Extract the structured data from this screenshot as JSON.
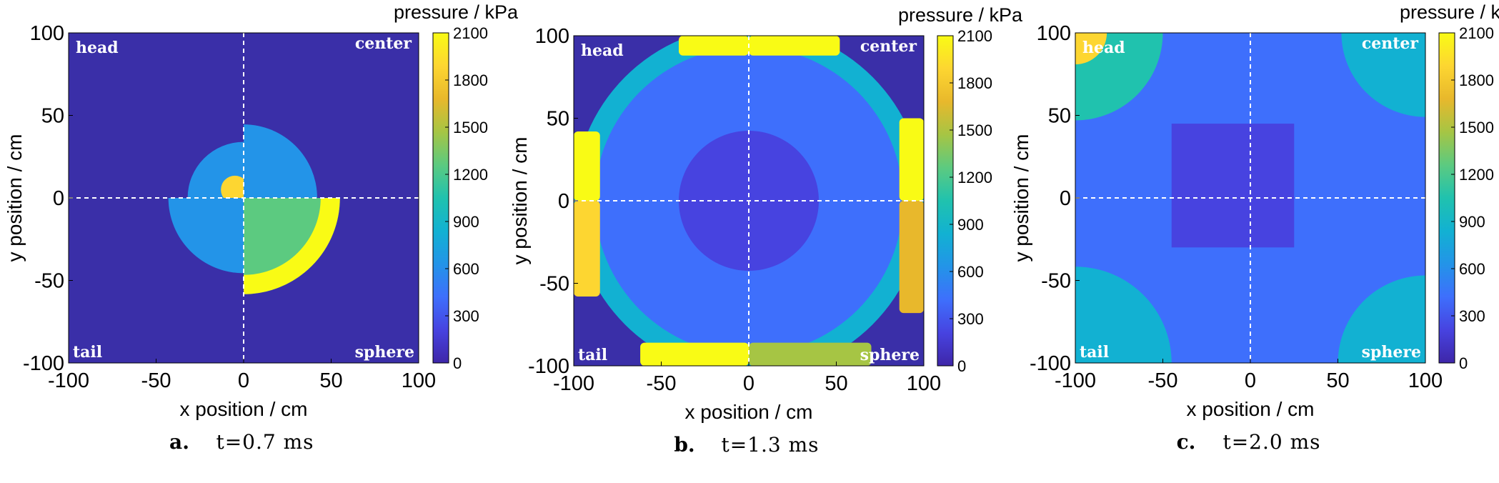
{
  "figure": {
    "colors": {
      "background": "#ffffff",
      "quiet": "#3a2fa8",
      "grid_line": "#ffffff"
    },
    "colormap": [
      "#3e26a8",
      "#4743e0",
      "#3e6ffc",
      "#2394e8",
      "#12b1d2",
      "#20c2ae",
      "#5cca80",
      "#a6c544",
      "#e8b82c",
      "#fdd631",
      "#f9fb15"
    ]
  },
  "chart_data": [
    {
      "type": "heatmap",
      "panel": "a",
      "caption_letter": "a.",
      "caption_time": "t=0.7 ms",
      "xlabel": "x position / cm",
      "ylabel": "y position / cm",
      "xlim": [
        -100,
        100
      ],
      "ylim": [
        -100,
        100
      ],
      "xticks": [
        "-100",
        "-50",
        "0",
        "50",
        "100"
      ],
      "yticks": [
        "100",
        "50",
        "0",
        "-50",
        "-100"
      ],
      "colorbar_title": "pressure / kPa",
      "colorbar_ticks": [
        "2100",
        "1800",
        "1500",
        "1200",
        "900",
        "600",
        "300",
        "0"
      ],
      "crop_range": [
        0,
        2100
      ],
      "quadrant_labels": {
        "top_left": "head",
        "top_right": "center",
        "bottom_left": "tail",
        "bottom_right": "sphere"
      },
      "features": [
        {
          "quadrant": "top_left",
          "shape": "disk",
          "center": [
            0,
            0
          ],
          "inner_radius": 0,
          "outer_radius": 32,
          "value": 700
        },
        {
          "quadrant": "top_right",
          "shape": "disk",
          "center": [
            0,
            0
          ],
          "inner_radius": 0,
          "outer_radius": 42,
          "value": 650
        },
        {
          "quadrant": "bottom_left",
          "shape": "disk",
          "center": [
            0,
            0
          ],
          "inner_radius": 0,
          "outer_radius": 43,
          "value": 600
        },
        {
          "quadrant": "bottom_right",
          "shape": "disk",
          "center": [
            0,
            0
          ],
          "inner_radius": 0,
          "outer_radius": 55,
          "value": 1300
        },
        {
          "quadrant": "bottom_right",
          "shape": "ring",
          "center": [
            0,
            0
          ],
          "inner_radius": 44,
          "outer_radius": 55,
          "value": 2000
        },
        {
          "quadrant": "top_left",
          "shape": "disk",
          "center": [
            -5,
            5
          ],
          "inner_radius": 0,
          "outer_radius": 8,
          "value": 1800
        }
      ]
    },
    {
      "type": "heatmap",
      "panel": "b",
      "caption_letter": "b.",
      "caption_time": "t=1.3 ms",
      "xlabel": "x position / cm",
      "ylabel": "y position / cm",
      "xlim": [
        -100,
        100
      ],
      "ylim": [
        -100,
        100
      ],
      "xticks": [
        "-100",
        "-50",
        "0",
        "50",
        "100"
      ],
      "yticks": [
        "100",
        "50",
        "0",
        "-50",
        "-100"
      ],
      "colorbar_title": "pressure / kPa",
      "colorbar_ticks": [
        "2100",
        "1800",
        "1500",
        "1200",
        "900",
        "600",
        "300",
        "0"
      ],
      "crop_range": [
        0,
        2100
      ],
      "quadrant_labels": {
        "top_left": "head",
        "top_right": "center",
        "bottom_left": "tail",
        "bottom_right": "sphere"
      },
      "features": [
        {
          "quadrant": "all",
          "shape": "disk",
          "center": [
            0,
            0
          ],
          "inner_radius": 0,
          "outer_radius": 100,
          "value": 750
        },
        {
          "quadrant": "all",
          "shape": "disk",
          "center": [
            0,
            0
          ],
          "inner_radius": 0,
          "outer_radius": 88,
          "value": 450
        },
        {
          "quadrant": "all",
          "shape": "disk",
          "center": [
            0,
            0
          ],
          "inner_radius": 0,
          "outer_radius": 40,
          "value": 300
        },
        {
          "quadrant": "top_left",
          "shape": "edge-band",
          "region": [
            -40,
            88,
            0,
            100
          ],
          "value": 2000
        },
        {
          "quadrant": "top_right",
          "shape": "edge-band",
          "region": [
            0,
            88,
            52,
            100
          ],
          "value": 2000
        },
        {
          "quadrant": "top_left",
          "shape": "edge-band",
          "region": [
            -100,
            0,
            -85,
            42
          ],
          "value": 2050
        },
        {
          "quadrant": "bottom_left",
          "shape": "edge-band",
          "region": [
            -100,
            -58,
            -85,
            0
          ],
          "value": 1900
        },
        {
          "quadrant": "top_right",
          "shape": "edge-band",
          "region": [
            86,
            0,
            100,
            50
          ],
          "value": 2050
        },
        {
          "quadrant": "bottom_right",
          "shape": "edge-band",
          "region": [
            86,
            -68,
            100,
            0
          ],
          "value": 1700
        },
        {
          "quadrant": "bottom_left",
          "shape": "edge-band",
          "region": [
            -62,
            -100,
            0,
            -86
          ],
          "value": 2050
        },
        {
          "quadrant": "bottom_right",
          "shape": "edge-band",
          "region": [
            0,
            -100,
            70,
            -86
          ],
          "value": 1500
        }
      ]
    },
    {
      "type": "heatmap",
      "panel": "c",
      "caption_letter": "c.",
      "caption_time": "t=2.0 ms",
      "xlabel": "x position / cm",
      "ylabel": "y position / cm",
      "xlim": [
        -100,
        100
      ],
      "ylim": [
        -100,
        100
      ],
      "xticks": [
        "-100",
        "-50",
        "0",
        "50",
        "100"
      ],
      "yticks": [
        "100",
        "50",
        "0",
        "-50",
        "-100"
      ],
      "colorbar_title": "pressure / kPa",
      "colorbar_ticks": [
        "2100",
        "1800",
        "1500",
        "1200",
        "900",
        "600",
        "300",
        "0"
      ],
      "crop_range": [
        0,
        2100
      ],
      "quadrant_labels": {
        "top_left": "head",
        "top_right": "center",
        "bottom_left": "tail",
        "bottom_right": "sphere"
      },
      "features": [
        {
          "quadrant": "all",
          "shape": "square",
          "region": [
            -100,
            -100,
            100,
            100
          ],
          "value": 330
        },
        {
          "quadrant": "all",
          "shape": "square",
          "region": [
            -45,
            -30,
            25,
            45
          ],
          "value": 170
        },
        {
          "quadrant": "top_left",
          "shape": "corner-cap",
          "center": [
            -100,
            100
          ],
          "inner_radius": 0,
          "outer_radius": 50,
          "value": 1100
        },
        {
          "quadrant": "top_left",
          "shape": "corner-cap",
          "center": [
            -100,
            100
          ],
          "inner_radius": 0,
          "outer_radius": 18,
          "value": 1900
        },
        {
          "quadrant": "top_right",
          "shape": "corner-cap",
          "center": [
            100,
            100
          ],
          "inner_radius": 0,
          "outer_radius": 48,
          "value": 850
        },
        {
          "quadrant": "bottom_left",
          "shape": "corner-cap",
          "center": [
            -100,
            -100
          ],
          "inner_radius": 0,
          "outer_radius": 55,
          "value": 800
        },
        {
          "quadrant": "bottom_right",
          "shape": "corner-cap",
          "center": [
            100,
            -100
          ],
          "inner_radius": 0,
          "outer_radius": 50,
          "value": 850
        }
      ]
    }
  ]
}
